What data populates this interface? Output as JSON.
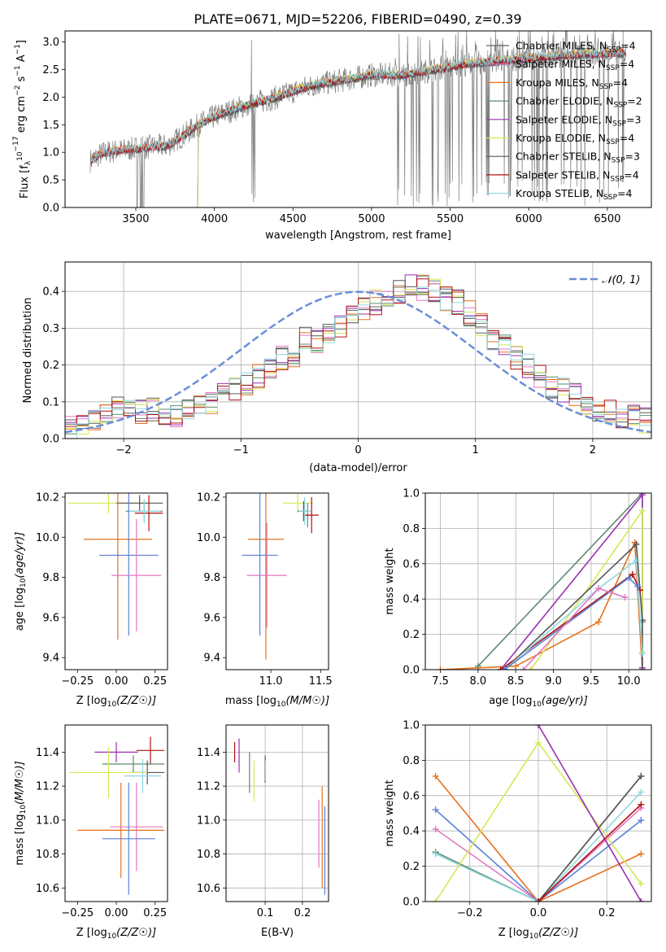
{
  "title": "PLATE=0671, MJD=52206, FIBERID=0490, z=0.39",
  "colors": {
    "Chabrier MILES": "#616161",
    "Salpeter MILES": "#e377c2",
    "Kroupa MILES": "#e8711a",
    "Chabrier ELODIE": "#5d8a6e",
    "Salpeter ELODIE": "#9a2fb0",
    "Kroupa ELODIE": "#d4e855",
    "Chabrier STELIB": "#555555",
    "Salpeter STELIB": "#b01010",
    "Kroupa STELIB": "#8fd8e0",
    "extra_blue": "#5b7fd6",
    "gauss": "#6a8fd8"
  },
  "chart_data": [
    {
      "id": "spectrum",
      "type": "line",
      "title": "PLATE=0671, MJD=52206, FIBERID=0490, z=0.39",
      "xlabel": "wavelength [Angstrom, rest frame]",
      "ylabel": "Flux [f",
      "xlim": [
        3050,
        6780
      ],
      "ylim": [
        0,
        3.2
      ],
      "xticks": [
        3500,
        4000,
        4500,
        5000,
        5500,
        6000,
        6500
      ],
      "yticks": [
        0.0,
        0.5,
        1.0,
        1.5,
        2.0,
        2.5,
        3.0
      ],
      "continuum": {
        "x": [
          3210,
          3300,
          3450,
          3600,
          3700,
          3800,
          3900,
          4000,
          4100,
          4200,
          4400,
          4600,
          4800,
          5000,
          5200,
          5400,
          5600,
          5800,
          6000,
          6200,
          6400,
          6600
        ],
        "y": [
          0.85,
          1.0,
          1.05,
          1.1,
          1.12,
          1.3,
          1.5,
          1.65,
          1.75,
          1.85,
          2.0,
          2.2,
          2.3,
          2.4,
          2.4,
          2.5,
          2.6,
          2.65,
          2.7,
          2.75,
          2.78,
          2.8
        ]
      },
      "data_spectrum_span": [
        3210,
        6620
      ],
      "legend": [
        {
          "base": "Chabrier MILES",
          "n": "4"
        },
        {
          "base": "Salpeter MILES",
          "n": "4"
        },
        {
          "base": "Kroupa MILES",
          "n": "4"
        },
        {
          "base": "Chabrier ELODIE",
          "n": "2"
        },
        {
          "base": "Salpeter ELODIE",
          "n": "3"
        },
        {
          "base": "Kroupa ELODIE",
          "n": "4"
        },
        {
          "base": "Chabrier STELIB",
          "n": "3"
        },
        {
          "base": "Salpeter STELIB",
          "n": "4"
        },
        {
          "base": "Kroupa STELIB",
          "n": "4"
        }
      ],
      "legend_position": "upper right"
    },
    {
      "id": "residuals",
      "type": "area",
      "xlabel": "(data-model)/error",
      "ylabel": "Normed distribution",
      "xlim": [
        -2.5,
        2.5
      ],
      "ylim": [
        0,
        0.48
      ],
      "xticks": [
        -2,
        -1,
        0,
        1,
        2
      ],
      "yticks": [
        0.0,
        0.1,
        0.2,
        0.3,
        0.4
      ],
      "grid": true,
      "bin_edges_start": -2.5,
      "bin_width": 0.1,
      "histogram": [
        0.03,
        0.04,
        0.05,
        0.06,
        0.08,
        0.08,
        0.07,
        0.08,
        0.07,
        0.06,
        0.08,
        0.09,
        0.1,
        0.12,
        0.13,
        0.15,
        0.17,
        0.2,
        0.22,
        0.23,
        0.27,
        0.26,
        0.28,
        0.3,
        0.33,
        0.35,
        0.37,
        0.38,
        0.4,
        0.41,
        0.41,
        0.4,
        0.38,
        0.37,
        0.34,
        0.31,
        0.27,
        0.25,
        0.22,
        0.2,
        0.17,
        0.14,
        0.13,
        0.12,
        0.1,
        0.08,
        0.07,
        0.06,
        0.06,
        0.05
      ],
      "gaussian_label": "𝒩(0, 1)",
      "legend_position": "upper right"
    },
    {
      "id": "age_vs_Z",
      "type": "scatter",
      "xlabel": "Z [log10(Z/Z☉)]",
      "ylabel": "age  [log10(age/yr)]",
      "xlim": [
        -0.33,
        0.33
      ],
      "ylim": [
        9.34,
        10.22
      ],
      "xticks": [
        -0.25,
        0.0,
        0.25
      ],
      "yticks": [
        9.4,
        9.6,
        9.8,
        10.0,
        10.2
      ],
      "points": [
        {
          "x": -0.05,
          "xerr": 0.26,
          "y": 10.17,
          "yerr": 0.05,
          "s": "Kroupa ELODIE"
        },
        {
          "x": 0.15,
          "xerr": 0.15,
          "y": 10.17,
          "yerr": 0.04,
          "s": "Chabrier STELIB"
        },
        {
          "x": 0.18,
          "xerr": 0.12,
          "y": 10.13,
          "yerr": 0.05,
          "s": "Chabrier ELODIE"
        },
        {
          "x": 0.21,
          "xerr": 0.09,
          "y": 10.12,
          "yerr": 0.09,
          "s": "Salpeter STELIB"
        },
        {
          "x": 0.18,
          "xerr": 0.1,
          "y": 10.13,
          "yerr": 0.06,
          "s": "Kroupa STELIB"
        },
        {
          "x": 0.01,
          "xerr": 0.22,
          "y": 9.99,
          "yerr": 0.5,
          "s": "Kroupa MILES"
        },
        {
          "x": 0.08,
          "xerr": 0.19,
          "y": 9.91,
          "yerr": 0.4,
          "s": "extra_blue"
        },
        {
          "x": 0.13,
          "xerr": 0.16,
          "y": 9.81,
          "yerr": 0.28,
          "s": "Salpeter MILES"
        }
      ]
    },
    {
      "id": "age_vs_mass",
      "type": "scatter",
      "xlabel": "mass [log10(M/M☉)]",
      "ylabel": "",
      "xlim": [
        10.55,
        11.58
      ],
      "ylim": [
        9.34,
        10.22
      ],
      "xticks": [
        11.0,
        11.5
      ],
      "yticks": [
        9.4,
        9.6,
        9.8,
        10.0,
        10.2
      ],
      "points": [
        {
          "x": 11.27,
          "xerr": 0.15,
          "y": 10.17,
          "yerr": 0.05,
          "s": "Kroupa ELODIE"
        },
        {
          "x": 11.33,
          "xerr": 0.06,
          "y": 10.13,
          "yerr": 0.05,
          "s": "Chabrier STELIB"
        },
        {
          "x": 11.37,
          "xerr": 0.05,
          "y": 10.11,
          "yerr": 0.06,
          "s": "Chabrier ELODIE"
        },
        {
          "x": 11.41,
          "xerr": 0.07,
          "y": 10.11,
          "yerr": 0.09,
          "s": "Salpeter STELIB"
        },
        {
          "x": 11.34,
          "xerr": 0.06,
          "y": 10.13,
          "yerr": 0.07,
          "s": "Kroupa STELIB"
        },
        {
          "x": 10.95,
          "xerr": 0.18,
          "y": 9.99,
          "yerr": 0.6,
          "s": "Kroupa MILES"
        },
        {
          "x": 10.89,
          "xerr": 0.18,
          "y": 9.91,
          "yerr": 0.4,
          "s": "extra_blue"
        },
        {
          "x": 10.96,
          "xerr": 0.2,
          "y": 9.81,
          "yerr": 0.26,
          "s": "Salpeter MILES"
        }
      ]
    },
    {
      "id": "weight_vs_age",
      "type": "line",
      "xlabel": "age  [log10(age/yr)]",
      "ylabel": "mass weight",
      "xlim": [
        7.3,
        10.3
      ],
      "ylim": [
        0,
        1.0
      ],
      "xticks": [
        7.5,
        8.0,
        8.5,
        9.0,
        9.5,
        10.0
      ],
      "yticks": [
        0.0,
        0.2,
        0.4,
        0.6,
        0.8,
        1.0
      ],
      "grid": true,
      "series": [
        {
          "s": "Kroupa MILES",
          "x": [
            7.5,
            8.0,
            8.5,
            9.6,
            10.08,
            10.18
          ],
          "y": [
            0.0,
            0.01,
            0.02,
            0.27,
            0.72,
            0.0
          ]
        },
        {
          "s": "Chabrier ELODIE",
          "x": [
            8.0,
            10.18,
            10.18
          ],
          "y": [
            0.02,
            1.0,
            0.27
          ]
        },
        {
          "s": "Salpeter ELODIE",
          "x": [
            8.3,
            10.18,
            10.18
          ],
          "y": [
            0.0,
            0.99,
            0.01
          ]
        },
        {
          "s": "Kroupa ELODIE",
          "x": [
            8.7,
            10.18,
            10.18
          ],
          "y": [
            0.0,
            0.9,
            0.1
          ]
        },
        {
          "s": "Chabrier STELIB",
          "x": [
            8.35,
            10.1,
            10.18,
            10.18
          ],
          "y": [
            0.0,
            0.71,
            0.28,
            0.0
          ]
        },
        {
          "s": "Salpeter STELIB",
          "x": [
            8.3,
            10.05,
            10.15
          ],
          "y": [
            0.0,
            0.54,
            0.45
          ]
        },
        {
          "s": "Kroupa STELIB",
          "x": [
            8.35,
            9.6,
            10.1,
            10.18
          ],
          "y": [
            0.0,
            0.46,
            0.62,
            0.09
          ]
        },
        {
          "s": "extra_blue",
          "x": [
            8.35,
            10.0,
            10.12
          ],
          "y": [
            0.0,
            0.52,
            0.47
          ]
        },
        {
          "s": "Salpeter MILES",
          "x": [
            8.6,
            9.6,
            9.95
          ],
          "y": [
            0.0,
            0.46,
            0.41
          ]
        }
      ]
    },
    {
      "id": "mass_vs_Z",
      "type": "scatter",
      "xlabel": "Z [log10(Z/Z☉)]",
      "ylabel": "mass [log10(M/M☉)]",
      "xlim": [
        -0.33,
        0.33
      ],
      "ylim": [
        10.52,
        11.56
      ],
      "xticks": [
        -0.25,
        0.0,
        0.25
      ],
      "yticks": [
        10.6,
        10.8,
        11.0,
        11.2,
        11.4
      ],
      "points": [
        {
          "x": 0.0,
          "xerr": 0.14,
          "y": 11.4,
          "yerr": 0.06,
          "s": "Salpeter ELODIE"
        },
        {
          "x": 0.22,
          "xerr": 0.09,
          "y": 11.41,
          "yerr": 0.08,
          "s": "Salpeter STELIB"
        },
        {
          "x": 0.11,
          "xerr": 0.2,
          "y": 11.33,
          "yerr": 0.05,
          "s": "Chabrier ELODIE"
        },
        {
          "x": 0.2,
          "xerr": 0.11,
          "y": 11.28,
          "yerr": 0.07,
          "s": "Chabrier STELIB"
        },
        {
          "x": -0.05,
          "xerr": 0.25,
          "y": 11.28,
          "yerr": 0.15,
          "s": "Kroupa ELODIE"
        },
        {
          "x": 0.17,
          "xerr": 0.12,
          "y": 11.26,
          "yerr": 0.1,
          "s": "Kroupa STELIB"
        },
        {
          "x": 0.03,
          "xerr": 0.28,
          "y": 10.94,
          "yerr": 0.28,
          "s": "Kroupa MILES"
        },
        {
          "x": 0.13,
          "xerr": 0.17,
          "y": 10.96,
          "yerr": 0.26,
          "s": "Salpeter MILES"
        },
        {
          "x": 0.08,
          "xerr": 0.17,
          "y": 10.89,
          "yerr": 0.33,
          "s": "extra_blue"
        }
      ]
    },
    {
      "id": "mass_vs_ebv",
      "type": "scatter",
      "xlabel": "E(B-V)",
      "ylabel": "",
      "xlim": [
        -0.005,
        0.27
      ],
      "ylim": [
        10.52,
        11.56
      ],
      "xticks": [
        0.1,
        0.2
      ],
      "yticks": [
        10.6,
        10.8,
        11.0,
        11.2,
        11.4
      ],
      "grid": true,
      "points": [
        {
          "x": 0.018,
          "y": 11.4,
          "yerr": 0.06,
          "s": "Salpeter STELIB"
        },
        {
          "x": 0.03,
          "y": 11.38,
          "yerr": 0.1,
          "s": "Salpeter ELODIE"
        },
        {
          "x": 0.058,
          "y": 11.28,
          "yerr": 0.12,
          "s": "Chabrier ELODIE"
        },
        {
          "x": 0.07,
          "y": 11.23,
          "yerr": 0.12,
          "s": "Kroupa ELODIE"
        },
        {
          "x": 0.1,
          "y": 11.3,
          "yerr": 0.08,
          "s": "Chabrier STELIB"
        },
        {
          "x": 0.101,
          "y": 11.29,
          "yerr": 0.06,
          "s": "Kroupa STELIB"
        },
        {
          "x": 0.244,
          "y": 10.92,
          "yerr": 0.2,
          "s": "Salpeter MILES"
        },
        {
          "x": 0.253,
          "y": 10.9,
          "yerr": 0.3,
          "s": "Kroupa MILES"
        },
        {
          "x": 0.26,
          "y": 10.82,
          "yerr": 0.26,
          "s": "extra_blue"
        }
      ]
    },
    {
      "id": "weight_vs_Z",
      "type": "line",
      "xlabel": "Z [log10(Z/Z☉)]",
      "ylabel": "mass weight",
      "xlim": [
        -0.33,
        0.33
      ],
      "ylim": [
        0,
        1.0
      ],
      "xticks": [
        -0.2,
        0.0,
        0.2
      ],
      "yticks": [
        0.0,
        0.2,
        0.4,
        0.6,
        0.8,
        1.0
      ],
      "grid": true,
      "series": [
        {
          "s": "Kroupa MILES",
          "x": [
            -0.3,
            0.0,
            0.3
          ],
          "y": [
            0.71,
            0.0,
            0.27
          ]
        },
        {
          "s": "extra_blue",
          "x": [
            -0.3,
            0.0,
            0.3
          ],
          "y": [
            0.52,
            0.0,
            0.46
          ]
        },
        {
          "s": "Salpeter MILES",
          "x": [
            -0.3,
            0.0,
            0.3
          ],
          "y": [
            0.41,
            0.0,
            0.53
          ]
        },
        {
          "s": "Chabrier ELODIE",
          "x": [
            -0.3,
            0.0,
            0.3
          ],
          "y": [
            0.28,
            0.0,
            0.71
          ]
        },
        {
          "s": "Kroupa STELIB",
          "x": [
            -0.3,
            0.0,
            0.3
          ],
          "y": [
            0.27,
            0.0,
            0.62
          ]
        },
        {
          "s": "Kroupa ELODIE",
          "x": [
            -0.3,
            0.0,
            0.3
          ],
          "y": [
            0.0,
            0.9,
            0.1
          ]
        },
        {
          "s": "Salpeter ELODIE",
          "x": [
            0.0,
            0.3
          ],
          "y": [
            1.0,
            0.0
          ]
        },
        {
          "s": "Chabrier STELIB",
          "x": [
            0.0,
            0.3
          ],
          "y": [
            0.0,
            0.71
          ]
        },
        {
          "s": "Salpeter STELIB",
          "x": [
            0.0,
            0.3
          ],
          "y": [
            0.0,
            0.55
          ]
        }
      ]
    }
  ]
}
